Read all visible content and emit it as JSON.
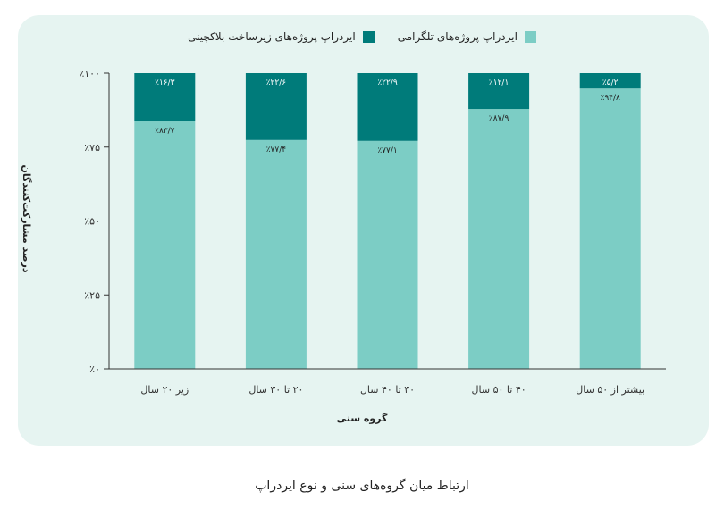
{
  "caption": "ارتباط میان گروه‌های سنی و نوع ایردراپ",
  "colors": {
    "card_bg": "#e6f4f1",
    "telegram": "#7ccdc5",
    "blockchain": "#007b7a",
    "axis": "#333333"
  },
  "chart_data": {
    "type": "bar",
    "stacked": true,
    "percent": true,
    "xlabel": "گروه سنی",
    "ylabel": "درصد مشارکت‌کنندگان",
    "ylim": [
      0,
      100
    ],
    "y_ticks": [
      {
        "value": 0,
        "label": "٪۰"
      },
      {
        "value": 25,
        "label": "٪۲۵"
      },
      {
        "value": 50,
        "label": "٪۵۰"
      },
      {
        "value": 75,
        "label": "٪۷۵"
      },
      {
        "value": 100,
        "label": "٪۱۰۰"
      }
    ],
    "categories": [
      "زیر ۲۰ سال",
      "۲۰ تا ۳۰ سال",
      "۳۰ تا ۴۰ سال",
      "۴۰ تا ۵۰ سال",
      "بیشتر از ۵۰ سال"
    ],
    "legend_position": "top-center",
    "grid": false,
    "series": [
      {
        "name": "ایردراپ پروژه‌های تلگرامی",
        "color": "#7ccdc5",
        "values": [
          83.7,
          77.4,
          77.1,
          87.9,
          94.8
        ],
        "labels": [
          "٪۸۳/۷",
          "٪۷۷/۴",
          "٪۷۷/۱",
          "٪۸۷/۹",
          "٪۹۴/۸"
        ]
      },
      {
        "name": "ایردراپ پروژه‌های زیرساخت بلاکچینی",
        "color": "#007b7a",
        "values": [
          16.3,
          22.6,
          22.9,
          12.1,
          5.2
        ],
        "labels": [
          "٪۱۶/۳",
          "٪۲۲/۶",
          "٪۲۲/۹",
          "٪۱۲/۱",
          "٪۵/۲"
        ]
      }
    ]
  }
}
